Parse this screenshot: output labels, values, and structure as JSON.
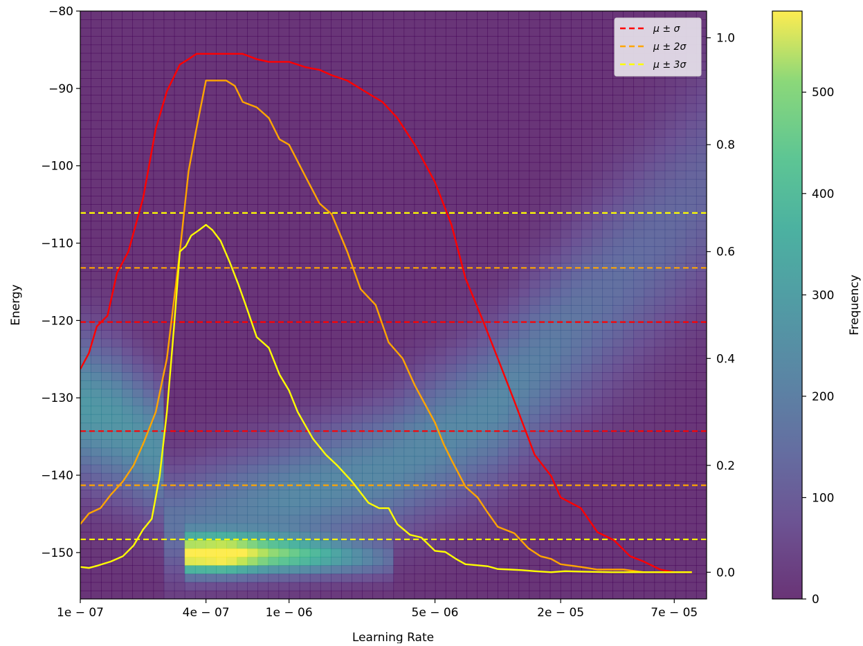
{
  "chart_data": {
    "type": "heatmap",
    "xlabel": "Learning Rate",
    "ylabel": "Energy",
    "y2label": "",
    "colorbar_label": "Frequency",
    "x_scale": "log",
    "x_range": [
      1e-07,
      0.0001
    ],
    "x_ticks": [
      1e-07,
      4e-07,
      1e-06,
      5e-06,
      2e-05,
      7e-05
    ],
    "x_tick_labels": [
      "1e − 07",
      "4e − 07",
      "1e − 06",
      "5e − 06",
      "2e − 05",
      "7e − 05"
    ],
    "ylim": [
      -156,
      -80
    ],
    "y_ticks": [
      -80,
      -90,
      -100,
      -110,
      -120,
      -130,
      -140,
      -150
    ],
    "y_tick_labels": [
      "−80",
      "−90",
      "−100",
      "−110",
      "−120",
      "−130",
      "−140",
      "−150"
    ],
    "y2lim": [
      -0.05,
      1.05
    ],
    "y2_ticks": [
      0.0,
      0.2,
      0.4,
      0.6,
      0.8,
      1.0
    ],
    "y2_tick_labels": [
      "0.0",
      "0.2",
      "0.4",
      "0.6",
      "0.8",
      "1.0"
    ],
    "colorbar_range": [
      0,
      580
    ],
    "colorbar_ticks": [
      0,
      100,
      200,
      300,
      400,
      500
    ],
    "colorbar_tick_labels": [
      "0",
      "100",
      "200",
      "300",
      "400",
      "500"
    ],
    "colormap": "viridis",
    "heatmap_alpha": 0.8,
    "grid": false,
    "legend_position": "top-right",
    "legend": [
      {
        "label": "μ ± σ",
        "color": "#ff0000",
        "style": "dashed"
      },
      {
        "label": "μ ± 2σ",
        "color": "#ffa500",
        "style": "dashed"
      },
      {
        "label": "μ ± 3σ",
        "color": "#ffff00",
        "style": "dashed"
      }
    ],
    "hlines": [
      {
        "y": -120.2,
        "color": "#ff0000"
      },
      {
        "y": -134.3,
        "color": "#ff0000"
      },
      {
        "y": -113.2,
        "color": "#ffa500"
      },
      {
        "y": -141.3,
        "color": "#ffa500"
      },
      {
        "y": -106.1,
        "color": "#ffff00"
      },
      {
        "y": -148.3,
        "color": "#ffff00"
      }
    ],
    "heatmap_bands": [
      {
        "x_from": 1e-07,
        "x_to": 2.5e-07,
        "ridge": [
          [
            1e-07,
            -131,
            6.5,
            250
          ],
          [
            1.5e-07,
            -133,
            6.5,
            240
          ],
          [
            2.4e-07,
            -137,
            6,
            220
          ]
        ]
      },
      {
        "x_from": 2.5e-07,
        "x_to": 0.0001,
        "ridge": [
          [
            3e-07,
            -146,
            5,
            150
          ],
          [
            1e-06,
            -143,
            5.5,
            200
          ],
          [
            3e-06,
            -139,
            6,
            200
          ],
          [
            1e-05,
            -131,
            7,
            200
          ],
          [
            3e-05,
            -118,
            9,
            140
          ],
          [
            0.0001,
            -103,
            10,
            110
          ]
        ]
      },
      {
        "x_from": 3.3e-07,
        "x_to": 3e-06,
        "ridge": [
          [
            3.5e-07,
            -150.3,
            1.6,
            520
          ],
          [
            5e-07,
            -150.3,
            1.6,
            560
          ],
          [
            8e-07,
            -150.3,
            1.6,
            380
          ],
          [
            1.5e-06,
            -150.5,
            1.6,
            260
          ],
          [
            3e-06,
            -151,
            1.6,
            110
          ]
        ]
      }
    ],
    "series": [
      {
        "name": "μ ± σ",
        "color": "#ff0000",
        "x": [
          1e-07,
          1.1e-07,
          1.2e-07,
          1.35e-07,
          1.5e-07,
          1.7e-07,
          2e-07,
          2.3e-07,
          2.6e-07,
          3e-07,
          3.3e-07,
          3.6e-07,
          4e-07,
          4.5e-07,
          5e-07,
          6e-07,
          7e-07,
          8e-07,
          9e-07,
          1e-06,
          1.2e-06,
          1.4e-06,
          1.6e-06,
          1.9e-06,
          2.3e-06,
          2.8e-06,
          3.3e-06,
          4e-06,
          5e-06,
          6e-06,
          7e-06,
          8.5e-06,
          1e-05,
          1.2e-05,
          1.5e-05,
          1.8e-05,
          2e-05,
          2.5e-05,
          3e-05,
          3.6e-05,
          4.3e-05,
          5e-05,
          6e-05,
          7e-05,
          8.5e-05
        ],
        "values": [
          0.38,
          0.41,
          0.46,
          0.48,
          0.56,
          0.6,
          0.7,
          0.83,
          0.9,
          0.95,
          0.96,
          0.97,
          0.97,
          0.97,
          0.97,
          0.97,
          0.96,
          0.955,
          0.955,
          0.955,
          0.945,
          0.94,
          0.93,
          0.92,
          0.9,
          0.88,
          0.85,
          0.8,
          0.73,
          0.65,
          0.55,
          0.47,
          0.4,
          0.32,
          0.22,
          0.18,
          0.14,
          0.12,
          0.075,
          0.06,
          0.03,
          0.02,
          0.005,
          0.0,
          0.0
        ]
      },
      {
        "name": "μ ± 2σ",
        "color": "#ffa500",
        "x": [
          1e-07,
          1.1e-07,
          1.25e-07,
          1.4e-07,
          1.6e-07,
          1.8e-07,
          2e-07,
          2.3e-07,
          2.6e-07,
          3e-07,
          3.3e-07,
          3.6e-07,
          4e-07,
          4.5e-07,
          5e-07,
          5.5e-07,
          6e-07,
          7e-07,
          8e-07,
          9e-07,
          1e-06,
          1.2e-06,
          1.4e-06,
          1.6e-06,
          1.9e-06,
          2.2e-06,
          2.6e-06,
          3e-06,
          3.5e-06,
          4e-06,
          5e-06,
          5.5e-06,
          6e-06,
          7e-06,
          8e-06,
          9e-06,
          1e-05,
          1.2e-05,
          1.4e-05,
          1.6e-05,
          1.8e-05,
          2e-05,
          2.5e-05,
          3e-05,
          4e-05,
          5e-05,
          8.5e-05
        ],
        "values": [
          0.09,
          0.11,
          0.12,
          0.145,
          0.17,
          0.2,
          0.24,
          0.3,
          0.4,
          0.6,
          0.75,
          0.83,
          0.92,
          0.92,
          0.92,
          0.91,
          0.88,
          0.87,
          0.85,
          0.81,
          0.8,
          0.74,
          0.69,
          0.67,
          0.6,
          0.53,
          0.5,
          0.43,
          0.4,
          0.35,
          0.28,
          0.24,
          0.21,
          0.16,
          0.14,
          0.11,
          0.085,
          0.073,
          0.045,
          0.03,
          0.025,
          0.015,
          0.01,
          0.005,
          0.005,
          0.0,
          0.0
        ]
      },
      {
        "name": "μ ± 3σ",
        "color": "#ffff00",
        "x": [
          1e-07,
          1.1e-07,
          1.2e-07,
          1.4e-07,
          1.6e-07,
          1.8e-07,
          2e-07,
          2.2e-07,
          2.4e-07,
          2.6e-07,
          2.8e-07,
          3e-07,
          3.2e-07,
          3.4e-07,
          3.7e-07,
          4e-07,
          4.3e-07,
          4.7e-07,
          5.2e-07,
          5.7e-07,
          6.2e-07,
          7e-07,
          8e-07,
          9e-07,
          1e-06,
          1.1e-06,
          1.3e-06,
          1.5e-06,
          1.7e-06,
          2e-06,
          2.4e-06,
          2.7e-06,
          3e-06,
          3.3e-06,
          3.8e-06,
          4.3e-06,
          5e-06,
          5.6e-06,
          6.3e-06,
          7e-06,
          8e-06,
          9e-06,
          1e-05,
          1.15e-05,
          1.3e-05,
          1.5e-05,
          1.8e-05,
          2.1e-05,
          2.6e-05,
          3.5e-05,
          5e-05,
          8.5e-05
        ],
        "values": [
          0.01,
          0.008,
          0.012,
          0.02,
          0.03,
          0.05,
          0.08,
          0.1,
          0.18,
          0.3,
          0.45,
          0.6,
          0.61,
          0.63,
          0.64,
          0.65,
          0.64,
          0.62,
          0.58,
          0.54,
          0.5,
          0.44,
          0.42,
          0.37,
          0.34,
          0.3,
          0.25,
          0.22,
          0.2,
          0.17,
          0.13,
          0.12,
          0.12,
          0.09,
          0.07,
          0.065,
          0.04,
          0.038,
          0.025,
          0.015,
          0.013,
          0.011,
          0.006,
          0.005,
          0.004,
          0.002,
          0.0,
          0.002,
          0.001,
          0.0,
          0.0,
          0.0
        ]
      }
    ]
  }
}
